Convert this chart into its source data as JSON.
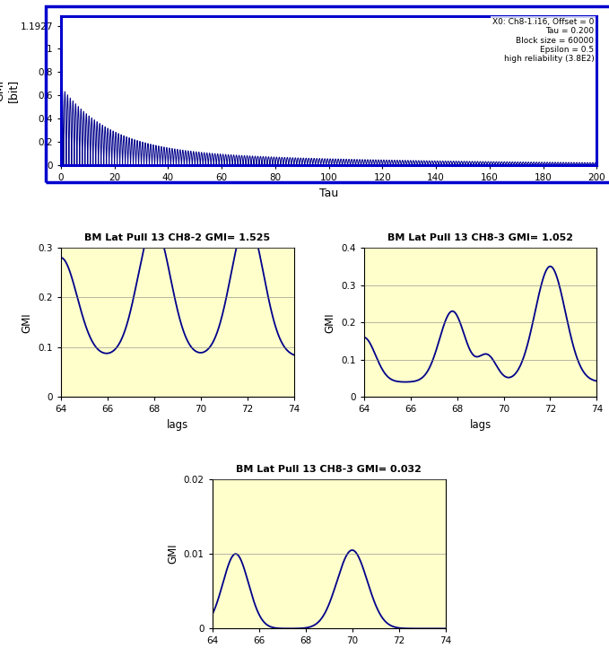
{
  "top_plot": {
    "xlabel": "Tau",
    "ylabel": "GMI\n[bit]",
    "xlim": [
      0,
      200
    ],
    "ylim": [
      0,
      1.28
    ],
    "yticks": [
      0,
      0.2,
      0.4,
      0.6,
      0.8,
      1.0,
      1.1927
    ],
    "ytick_labels": [
      "0",
      "0.2",
      "0.4",
      "0.6",
      "0.8",
      "1",
      "1.1927"
    ],
    "xticks": [
      0,
      20,
      40,
      60,
      80,
      100,
      120,
      140,
      160,
      180,
      200
    ],
    "annotation": "X0: Ch8-1.i16, Offset = 0\nTau = 0.200\nBlock size = 60000\nEpsilon = 0.5\nhigh reliability (3.8E2)",
    "line_color": "#00008B"
  },
  "bottom_left": {
    "title": "BM Lat Pull 13 CH8-2 GMI= 1.525",
    "xlabel": "lags",
    "ylabel": "GMI",
    "xlim": [
      64,
      74
    ],
    "ylim": [
      0,
      0.3
    ],
    "yticks": [
      0,
      0.1,
      0.2,
      0.3
    ],
    "ytick_labels": [
      "0",
      "0.1",
      "0.2",
      "0.3"
    ],
    "xticks": [
      64,
      66,
      68,
      70,
      72,
      74
    ],
    "bg_color": "#FFFFCC",
    "line_color": "#00008B"
  },
  "bottom_right": {
    "title": "BM Lat Pull 13 CH8-3 GMI= 1.052",
    "xlabel": "lags",
    "ylabel": "GMI",
    "xlim": [
      64,
      74
    ],
    "ylim": [
      0,
      0.4
    ],
    "yticks": [
      0,
      0.1,
      0.2,
      0.3,
      0.4
    ],
    "ytick_labels": [
      "0",
      "0.1",
      "0.2",
      "0.3",
      "0.4"
    ],
    "xticks": [
      64,
      66,
      68,
      70,
      72,
      74
    ],
    "bg_color": "#FFFFCC",
    "line_color": "#00008B"
  },
  "bottom_center": {
    "title": "BM Lat Pull 13 CH8-3 GMI= 0.032",
    "xlabel": "lags",
    "ylabel": "GMI",
    "xlim": [
      64,
      74
    ],
    "ylim": [
      0,
      0.02
    ],
    "yticks": [
      0,
      0.01,
      0.02
    ],
    "ytick_labels": [
      "0",
      "0.01",
      "0.02"
    ],
    "xticks": [
      64,
      66,
      68,
      70,
      72,
      74
    ],
    "bg_color": "#FFFFCC",
    "line_color": "#00008B"
  },
  "outer_box_color": "#0000CD",
  "fig_bg": "#ffffff"
}
